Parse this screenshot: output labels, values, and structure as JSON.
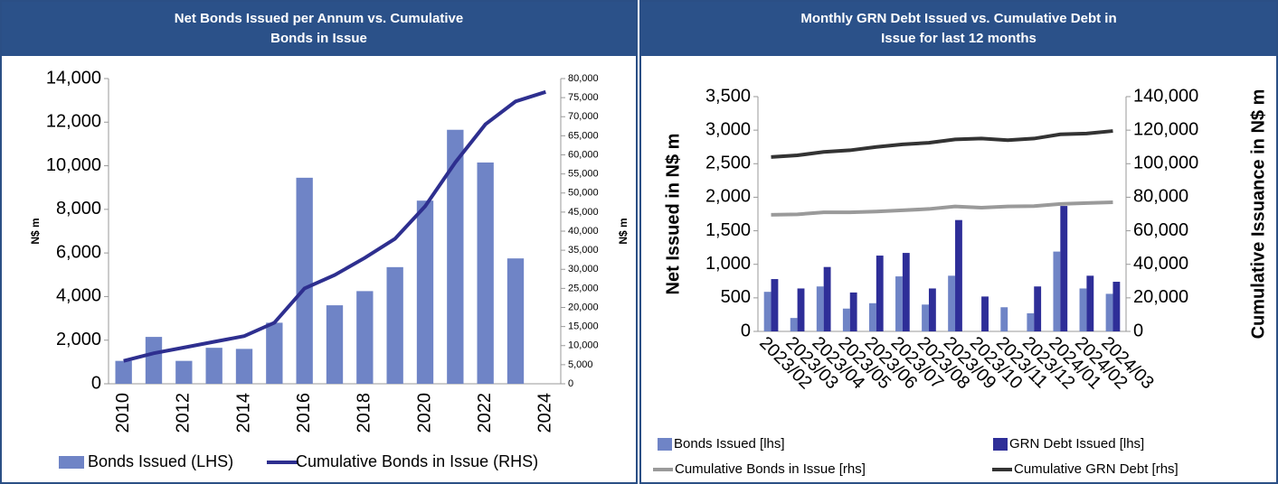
{
  "chart_data": [
    {
      "type": "bar",
      "title": "Net Bonds Issued per Annum vs. Cumulative Bonds in Issue",
      "ylabel": "N$ m",
      "y2label": "N$ m",
      "categories": [
        "2010",
        null,
        "2012",
        null,
        "2014",
        null,
        "2016",
        null,
        "2018",
        null,
        "2020",
        null,
        "2022",
        null,
        "2024"
      ],
      "series": [
        {
          "name": "Bonds Issued (LHS)",
          "type": "bar",
          "color": "#6f84c6",
          "values": [
            1050,
            2150,
            1050,
            1650,
            1600,
            2800,
            9450,
            3600,
            4250,
            5350,
            8400,
            11650,
            10150,
            5750,
            null
          ]
        },
        {
          "name": "Cumulative Bonds in Issue (RHS)",
          "type": "line",
          "axis": "y2",
          "color": "#2e2f8f",
          "values": [
            6000,
            8000,
            9500,
            11000,
            12500,
            16000,
            25000,
            28500,
            33000,
            38000,
            46500,
            58000,
            68000,
            74000,
            76500
          ]
        }
      ],
      "ylim": [
        0,
        14000
      ],
      "yticks": [
        0,
        {
          "value": 2000,
          "label": "2,000"
        },
        {
          "value": 4000,
          "label": "4,000"
        },
        {
          "value": 6000,
          "label": "6,000"
        },
        {
          "value": 8000,
          "label": "8,000"
        },
        {
          "value": 10000,
          "label": "10,000"
        },
        {
          "value": 12000,
          "label": "12,000"
        },
        {
          "value": 14000,
          "label": "14,000"
        }
      ],
      "y2lim": [
        0,
        80000
      ],
      "y2ticks": [
        0,
        {
          "value": 5000,
          "label": "5,000"
        },
        {
          "value": 10000,
          "label": "10,000"
        },
        {
          "value": 15000,
          "label": "15,000"
        },
        {
          "value": 20000,
          "label": "20,000"
        },
        {
          "value": 25000,
          "label": "25,000"
        },
        {
          "value": 30000,
          "label": "30,000"
        },
        {
          "value": 35000,
          "label": "35,000"
        },
        {
          "value": 40000,
          "label": "40,000"
        },
        {
          "value": 45000,
          "label": "45,000"
        },
        {
          "value": 50000,
          "label": "50,000"
        },
        {
          "value": 55000,
          "label": "55,000"
        },
        {
          "value": 60000,
          "label": "60,000"
        },
        {
          "value": 65000,
          "label": "65,000"
        },
        {
          "value": 70000,
          "label": "70,000"
        },
        {
          "value": 75000,
          "label": "75,000"
        },
        {
          "value": 80000,
          "label": "80,000"
        }
      ],
      "legend": "bottom"
    },
    {
      "type": "bar",
      "title": "Monthly GRN Debt Issued vs. Cumulative Debt in Issue for last 12 months",
      "ylabel": "Net Issued in N$ m",
      "y2label": "Cumulative Issuance in N$ m",
      "categories": [
        "2023/02",
        "2023/03",
        "2023/04",
        "2023/05",
        "2023/06",
        "2023/07",
        "2023/08",
        "2023/09",
        "2023/10",
        "2023/11",
        "2023/12",
        "2024/01",
        "2024/02",
        "2024/03"
      ],
      "series": [
        {
          "name": "Bonds Issued [lhs]",
          "type": "bar",
          "color": "#6f84c6",
          "values": [
            590,
            200,
            670,
            340,
            420,
            820,
            400,
            830,
            null,
            360,
            270,
            1190,
            640,
            560
          ]
        },
        {
          "name": "GRN Debt Issued [lhs]",
          "type": "bar",
          "color": "#2e2e98",
          "values": [
            780,
            640,
            960,
            580,
            1130,
            1170,
            640,
            1660,
            520,
            null,
            670,
            1870,
            830,
            740
          ]
        },
        {
          "name": "Cumulative Bonds in Issue [rhs]",
          "type": "line",
          "axis": "y2",
          "color": "#9a9a9a",
          "values": [
            69500,
            69800,
            71000,
            71000,
            71500,
            72200,
            73000,
            74500,
            73800,
            74500,
            74700,
            76000,
            76500,
            77000
          ]
        },
        {
          "name": "Cumulative GRN Debt [rhs]",
          "type": "line",
          "axis": "y2",
          "color": "#333333",
          "values": [
            104000,
            105000,
            107000,
            108000,
            110000,
            111500,
            112500,
            114500,
            115000,
            114000,
            115000,
            117500,
            118000,
            119500
          ]
        }
      ],
      "ylim": [
        0,
        3500
      ],
      "yticks": [
        0,
        500,
        {
          "value": 1000,
          "label": "1,000"
        },
        {
          "value": 1500,
          "label": "1,500"
        },
        {
          "value": 2000,
          "label": "2,000"
        },
        {
          "value": 2500,
          "label": "2,500"
        },
        {
          "value": 3000,
          "label": "3,000"
        },
        {
          "value": 3500,
          "label": "3,500"
        }
      ],
      "y2lim": [
        0,
        140000
      ],
      "y2ticks": [
        0,
        {
          "value": 20000,
          "label": "20,000"
        },
        {
          "value": 40000,
          "label": "40,000"
        },
        {
          "value": 60000,
          "label": "60,000"
        },
        {
          "value": 80000,
          "label": "80,000"
        },
        {
          "value": 100000,
          "label": "100,000"
        },
        {
          "value": 120000,
          "label": "120,000"
        },
        {
          "value": 140000,
          "label": "140,000"
        }
      ],
      "legend": "bottom"
    }
  ]
}
